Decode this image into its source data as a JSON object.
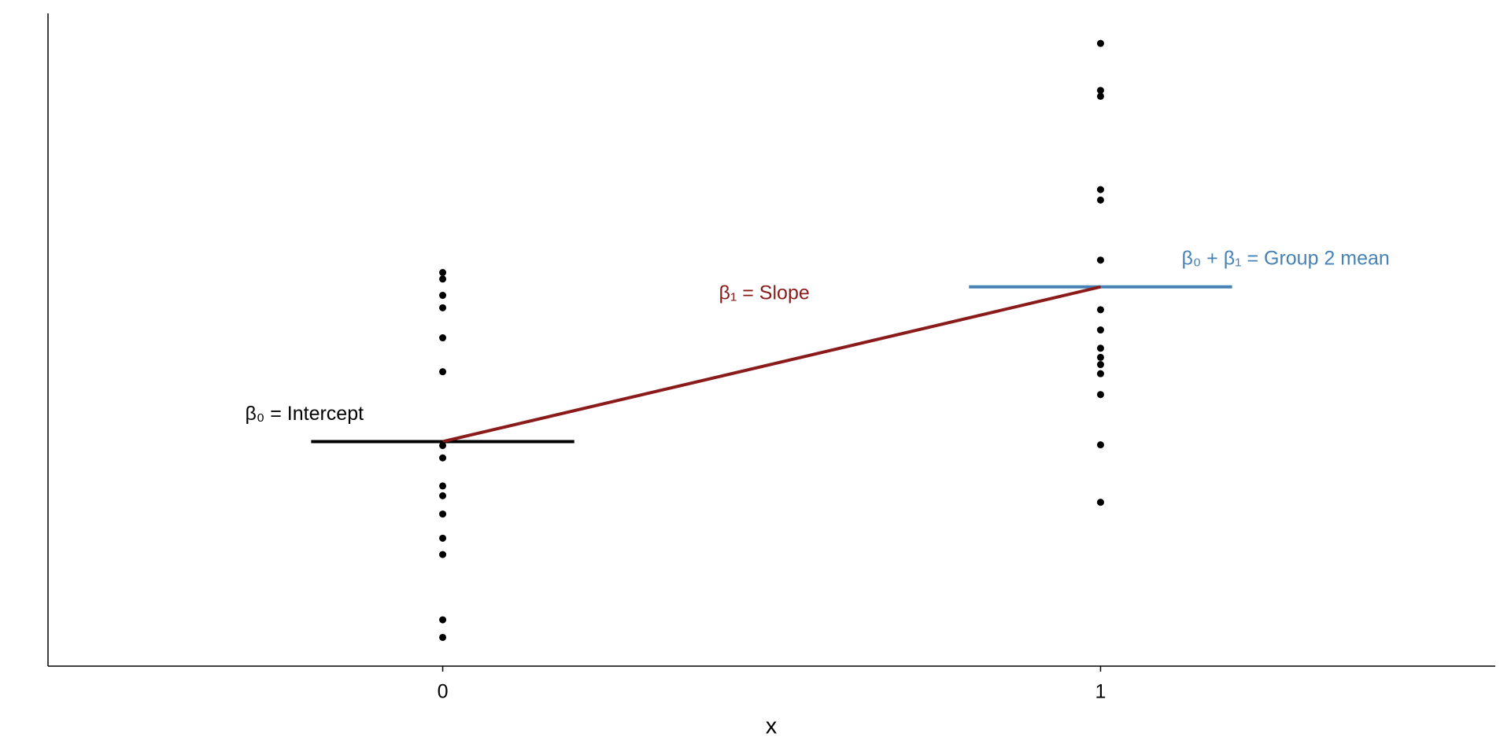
{
  "chart_data": {
    "type": "scatter",
    "x_label": "x",
    "xlim": [
      -0.6,
      1.6
    ],
    "xticks": [
      0,
      1
    ],
    "ylim": [
      0,
      100
    ],
    "series": [
      {
        "color": "#000000",
        "x": [
          0,
          0,
          0,
          0,
          0,
          0,
          0,
          0,
          0,
          0,
          0,
          0,
          0,
          0,
          0,
          1,
          1,
          1,
          1,
          1,
          1,
          1,
          1,
          1,
          1,
          1,
          1,
          1,
          1,
          1
        ],
        "values": [
          60.3,
          59.3,
          56.8,
          54.9,
          50.3,
          45.1,
          33.8,
          31.9,
          27.6,
          26.1,
          23.3,
          19.6,
          17.1,
          7.1,
          4.4,
          95.4,
          88.2,
          87.3,
          73.0,
          71.4,
          62.2,
          54.6,
          51.5,
          48.7,
          47.3,
          46.2,
          44.8,
          41.6,
          33.9,
          25.1
        ]
      }
    ],
    "intercept": {
      "label": "β₀ = Intercept",
      "value": 34.4,
      "color": "#000000"
    },
    "slope": {
      "label": "β₁ = Slope",
      "color": "#8b1a1a"
    },
    "group2_mean": {
      "label": "β₀ + β₁ = Group 2 mean",
      "value": 58.1,
      "color": "#4682b4"
    }
  }
}
